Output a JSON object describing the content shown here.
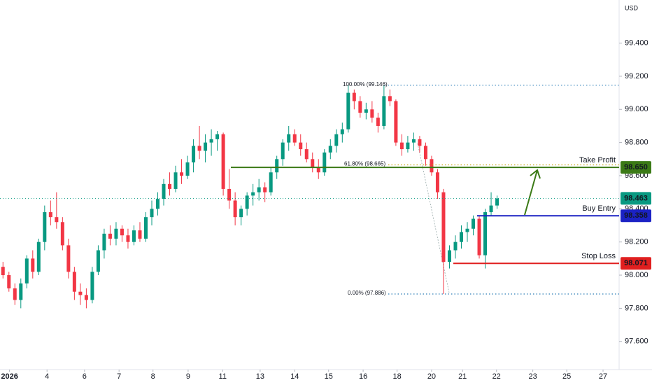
{
  "chart_data": {
    "type": "candlestick",
    "currency": "USD",
    "xlim": [
      -0.5,
      103.5
    ],
    "ylim": [
      97.43,
      99.66
    ],
    "xticks": [
      {
        "value": 1.1,
        "label": "2026"
      },
      {
        "value": 7.4,
        "label": "4"
      },
      {
        "value": 13.7,
        "label": "6"
      },
      {
        "value": 19.5,
        "label": "7"
      },
      {
        "value": 25.2,
        "label": "8"
      },
      {
        "value": 31.1,
        "label": "9"
      },
      {
        "value": 36.9,
        "label": "11"
      },
      {
        "value": 43.2,
        "label": "13"
      },
      {
        "value": 49,
        "label": "14"
      },
      {
        "value": 54.7,
        "label": "15"
      },
      {
        "value": 60.5,
        "label": "16"
      },
      {
        "value": 66.2,
        "label": "18"
      },
      {
        "value": 72,
        "label": "20"
      },
      {
        "value": 77.2,
        "label": "21"
      },
      {
        "value": 82.9,
        "label": "22"
      },
      {
        "value": 89,
        "label": "23"
      },
      {
        "value": 94.7,
        "label": "25"
      },
      {
        "value": 100.8,
        "label": "27"
      }
    ],
    "yticks": [
      {
        "value": 97.6,
        "label": "97.600"
      },
      {
        "value": 97.8,
        "label": "97.800"
      },
      {
        "value": 98.0,
        "label": "98.000"
      },
      {
        "value": 98.2,
        "label": "98.200"
      },
      {
        "value": 98.4,
        "label": "98.400"
      },
      {
        "value": 98.6,
        "label": "98.600"
      },
      {
        "value": 98.8,
        "label": "98.800"
      },
      {
        "value": 99.0,
        "label": "99.000"
      },
      {
        "value": 99.2,
        "label": "99.200"
      },
      {
        "value": 99.4,
        "label": "99.400"
      }
    ],
    "up_color": "#089981",
    "down_color": "#f23645",
    "ohlc": [
      [
        98.05,
        98.08,
        97.98,
        98.0
      ],
      [
        98.0,
        98.02,
        97.9,
        97.92
      ],
      [
        97.92,
        97.95,
        97.82,
        97.85
      ],
      [
        97.85,
        97.98,
        97.8,
        97.95
      ],
      [
        97.95,
        98.12,
        97.92,
        98.1
      ],
      [
        98.1,
        98.15,
        97.98,
        98.02
      ],
      [
        98.02,
        98.22,
        98.0,
        98.2
      ],
      [
        98.2,
        98.42,
        98.15,
        98.38
      ],
      [
        98.38,
        98.45,
        98.3,
        98.35
      ],
      [
        98.35,
        98.5,
        98.28,
        98.32
      ],
      [
        98.32,
        98.35,
        98.15,
        98.18
      ],
      [
        98.18,
        98.22,
        97.98,
        98.02
      ],
      [
        98.02,
        98.05,
        97.85,
        97.9
      ],
      [
        97.9,
        97.95,
        97.82,
        97.88
      ],
      [
        97.88,
        97.92,
        97.8,
        97.85
      ],
      [
        97.85,
        98.05,
        97.83,
        98.02
      ],
      [
        98.02,
        98.18,
        98.0,
        98.15
      ],
      [
        98.15,
        98.28,
        98.1,
        98.25
      ],
      [
        98.25,
        98.3,
        98.18,
        98.22
      ],
      [
        98.22,
        98.32,
        98.18,
        98.28
      ],
      [
        98.28,
        98.3,
        98.2,
        98.24
      ],
      [
        98.24,
        98.28,
        98.16,
        98.2
      ],
      [
        98.2,
        98.3,
        98.18,
        98.27
      ],
      [
        98.27,
        98.32,
        98.2,
        98.22
      ],
      [
        98.22,
        98.38,
        98.2,
        98.35
      ],
      [
        98.35,
        98.45,
        98.3,
        98.4
      ],
      [
        98.4,
        98.5,
        98.36,
        98.46
      ],
      [
        98.46,
        98.58,
        98.42,
        98.55
      ],
      [
        98.55,
        98.62,
        98.48,
        98.52
      ],
      [
        98.52,
        98.66,
        98.5,
        98.62
      ],
      [
        98.62,
        98.7,
        98.55,
        98.6
      ],
      [
        98.6,
        98.72,
        98.58,
        98.68
      ],
      [
        98.68,
        98.82,
        98.62,
        98.78
      ],
      [
        98.78,
        98.9,
        98.7,
        98.75
      ],
      [
        98.75,
        98.85,
        98.68,
        98.8
      ],
      [
        98.8,
        98.88,
        98.72,
        98.82
      ],
      [
        98.82,
        98.87,
        98.75,
        98.85
      ],
      [
        98.85,
        98.86,
        98.48,
        98.52
      ],
      [
        98.52,
        98.64,
        98.4,
        98.45
      ],
      [
        98.45,
        98.5,
        98.3,
        98.35
      ],
      [
        98.35,
        98.42,
        98.3,
        98.4
      ],
      [
        98.4,
        98.5,
        98.36,
        98.48
      ],
      [
        98.48,
        98.55,
        98.42,
        98.5
      ],
      [
        98.5,
        98.58,
        98.45,
        98.53
      ],
      [
        98.53,
        98.56,
        98.44,
        98.5
      ],
      [
        98.5,
        98.65,
        98.48,
        98.62
      ],
      [
        98.62,
        98.72,
        98.58,
        98.7
      ],
      [
        98.7,
        98.82,
        98.66,
        98.8
      ],
      [
        98.8,
        98.9,
        98.75,
        98.85
      ],
      [
        98.85,
        98.88,
        98.78,
        98.8
      ],
      [
        98.8,
        98.85,
        98.72,
        98.76
      ],
      [
        98.76,
        98.8,
        98.68,
        98.7
      ],
      [
        98.7,
        98.74,
        98.62,
        98.65
      ],
      [
        98.65,
        98.7,
        98.58,
        98.62
      ],
      [
        98.62,
        98.76,
        98.6,
        98.74
      ],
      [
        98.74,
        98.82,
        98.7,
        98.78
      ],
      [
        98.78,
        98.88,
        98.74,
        98.85
      ],
      [
        98.85,
        98.92,
        98.8,
        98.88
      ],
      [
        98.88,
        99.15,
        98.86,
        99.1
      ],
      [
        99.1,
        99.12,
        99.0,
        99.05
      ],
      [
        99.05,
        99.08,
        98.95,
        98.98
      ],
      [
        98.98,
        99.04,
        98.94,
        99.0
      ],
      [
        99.0,
        99.05,
        98.92,
        98.95
      ],
      [
        98.95,
        98.98,
        98.86,
        98.9
      ],
      [
        98.9,
        99.146,
        98.88,
        99.08
      ],
      [
        99.08,
        99.12,
        99.02,
        99.05
      ],
      [
        99.05,
        99.06,
        98.78,
        98.8
      ],
      [
        98.8,
        98.85,
        98.72,
        98.76
      ],
      [
        98.76,
        98.84,
        98.74,
        98.8
      ],
      [
        98.8,
        98.86,
        98.75,
        98.82
      ],
      [
        98.82,
        98.84,
        98.74,
        98.78
      ],
      [
        98.78,
        98.8,
        98.66,
        98.7
      ],
      [
        98.7,
        98.72,
        98.6,
        98.62
      ],
      [
        98.62,
        98.64,
        98.46,
        98.5
      ],
      [
        98.5,
        98.52,
        97.886,
        98.08
      ],
      [
        98.08,
        98.18,
        98.04,
        98.15
      ],
      [
        98.15,
        98.24,
        98.1,
        98.2
      ],
      [
        98.2,
        98.3,
        98.16,
        98.26
      ],
      [
        98.26,
        98.32,
        98.2,
        98.28
      ],
      [
        98.28,
        98.36,
        98.24,
        98.34
      ],
      [
        98.34,
        98.36,
        98.1,
        98.12
      ],
      [
        98.12,
        98.4,
        98.04,
        98.38
      ],
      [
        98.38,
        98.5,
        98.36,
        98.42
      ],
      [
        98.42,
        98.48,
        98.4,
        98.463
      ]
    ],
    "current_price": {
      "value": 98.463,
      "label": "98.463",
      "color": "#089981"
    },
    "levels": [
      {
        "name": "Take Profit",
        "value": 98.65,
        "label": "98.650",
        "color": "#3b7a16"
      },
      {
        "name": "Buy Entry",
        "value": 98.358,
        "label": "98.358",
        "color": "#1b22c4"
      },
      {
        "name": "Stop Loss",
        "value": 98.071,
        "label": "98.071",
        "color": "#e01f1f"
      }
    ],
    "fib": [
      {
        "value": 99.146,
        "label": "100.00% (99.146)",
        "color": "#2e7fb8"
      },
      {
        "value": 98.665,
        "label": "61.80% (98.665)",
        "color": "#c9a000"
      },
      {
        "value": 97.886,
        "label": "0.00% (97.886)",
        "color": "#2e7fb8"
      }
    ]
  }
}
